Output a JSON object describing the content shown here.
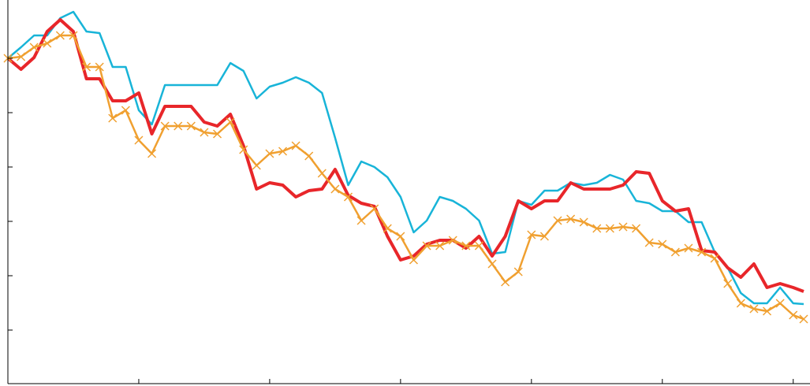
{
  "chart_data": {
    "type": "line",
    "x": [
      0,
      0.1,
      0.2,
      0.3,
      0.4,
      0.5,
      0.6,
      0.7,
      0.8,
      0.9,
      1.0,
      1.1,
      1.2,
      1.3,
      1.4,
      1.5,
      1.6,
      1.7,
      1.8,
      1.9,
      2.0,
      2.1,
      2.2,
      2.3,
      2.4,
      2.5,
      2.6,
      2.7,
      2.8,
      2.9,
      3.0,
      3.1,
      3.2,
      3.3,
      3.4,
      3.5,
      3.6,
      3.7,
      3.8,
      3.9,
      4.0,
      4.1,
      4.2,
      4.3,
      4.4,
      4.5,
      4.6,
      4.7,
      4.8,
      4.9,
      5.0,
      5.1,
      5.2,
      5.3,
      5.4,
      5.5,
      5.6,
      5.7,
      5.8,
      5.9,
      6.0,
      6.08
    ],
    "series": [
      {
        "color": "#18b4d8",
        "width": 2.5,
        "values": [
          413,
          427,
          442,
          442,
          464,
          472,
          447,
          445,
          402,
          402,
          347,
          329,
          379,
          379,
          379,
          379,
          379,
          407,
          397,
          362,
          377,
          382,
          389,
          382,
          369,
          312,
          252,
          282,
          275,
          262,
          237,
          192,
          207,
          237,
          232,
          222,
          207,
          165,
          167,
          232,
          227,
          245,
          245,
          255,
          252,
          255,
          265,
          259,
          232,
          229,
          219,
          219,
          205,
          205,
          167,
          147,
          115,
          102,
          102,
          122,
          102,
          101
        ]
      },
      {
        "color": "#e8262a",
        "width": 4,
        "values": [
          413,
          399,
          414,
          447,
          462,
          447,
          387,
          387,
          359,
          359,
          369,
          317,
          352,
          352,
          352,
          332,
          327,
          342,
          302,
          247,
          255,
          252,
          237,
          245,
          247,
          272,
          239,
          229,
          225,
          187,
          157,
          162,
          177,
          182,
          182,
          172,
          187,
          162,
          187,
          232,
          222,
          232,
          232,
          255,
          247,
          247,
          247,
          252,
          269,
          267,
          232,
          219,
          222,
          169,
          167,
          147,
          135,
          152,
          122,
          127,
          122,
          117
        ]
      },
      {
        "color": "#f0a030",
        "width": 2.5,
        "marker": "x",
        "values": [
          413,
          415,
          427,
          432,
          442,
          442,
          402,
          402,
          337,
          347,
          309,
          292,
          327,
          327,
          327,
          319,
          317,
          332,
          297,
          277,
          292,
          295,
          302,
          289,
          267,
          247,
          237,
          207,
          222,
          197,
          187,
          157,
          175,
          175,
          182,
          175,
          175,
          152,
          129,
          142,
          189,
          187,
          207,
          209,
          205,
          197,
          197,
          199,
          197,
          179,
          177,
          167,
          172,
          167,
          159,
          127,
          102,
          95,
          92,
          102,
          87,
          82
        ]
      }
    ],
    "xlim": [
      0,
      6.08
    ],
    "xticks": [
      0,
      1,
      2,
      3,
      4,
      5,
      6
    ],
    "ylim": [
      0,
      477
    ],
    "yticks": [
      68,
      137,
      206,
      275,
      344,
      413
    ]
  }
}
